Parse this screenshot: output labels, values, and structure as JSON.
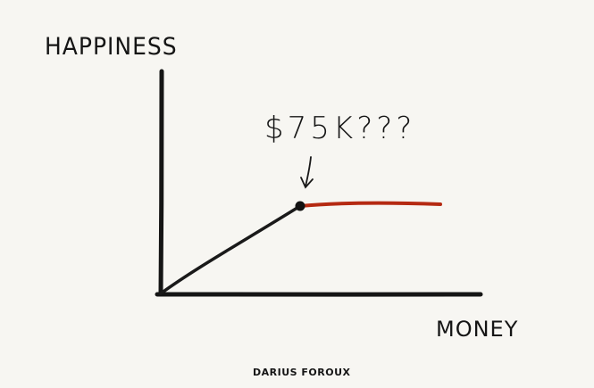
{
  "diagram": {
    "y_axis_label": "HAPPINESS",
    "x_axis_label": "MONEY",
    "annotation": "$75K???",
    "signature": "DARIUS FOROUX",
    "colors": {
      "axis": "#151515",
      "rising_curve": "#1a1a1a",
      "plateau_line": "#b52a12",
      "background": "#f7f6f2"
    }
  }
}
